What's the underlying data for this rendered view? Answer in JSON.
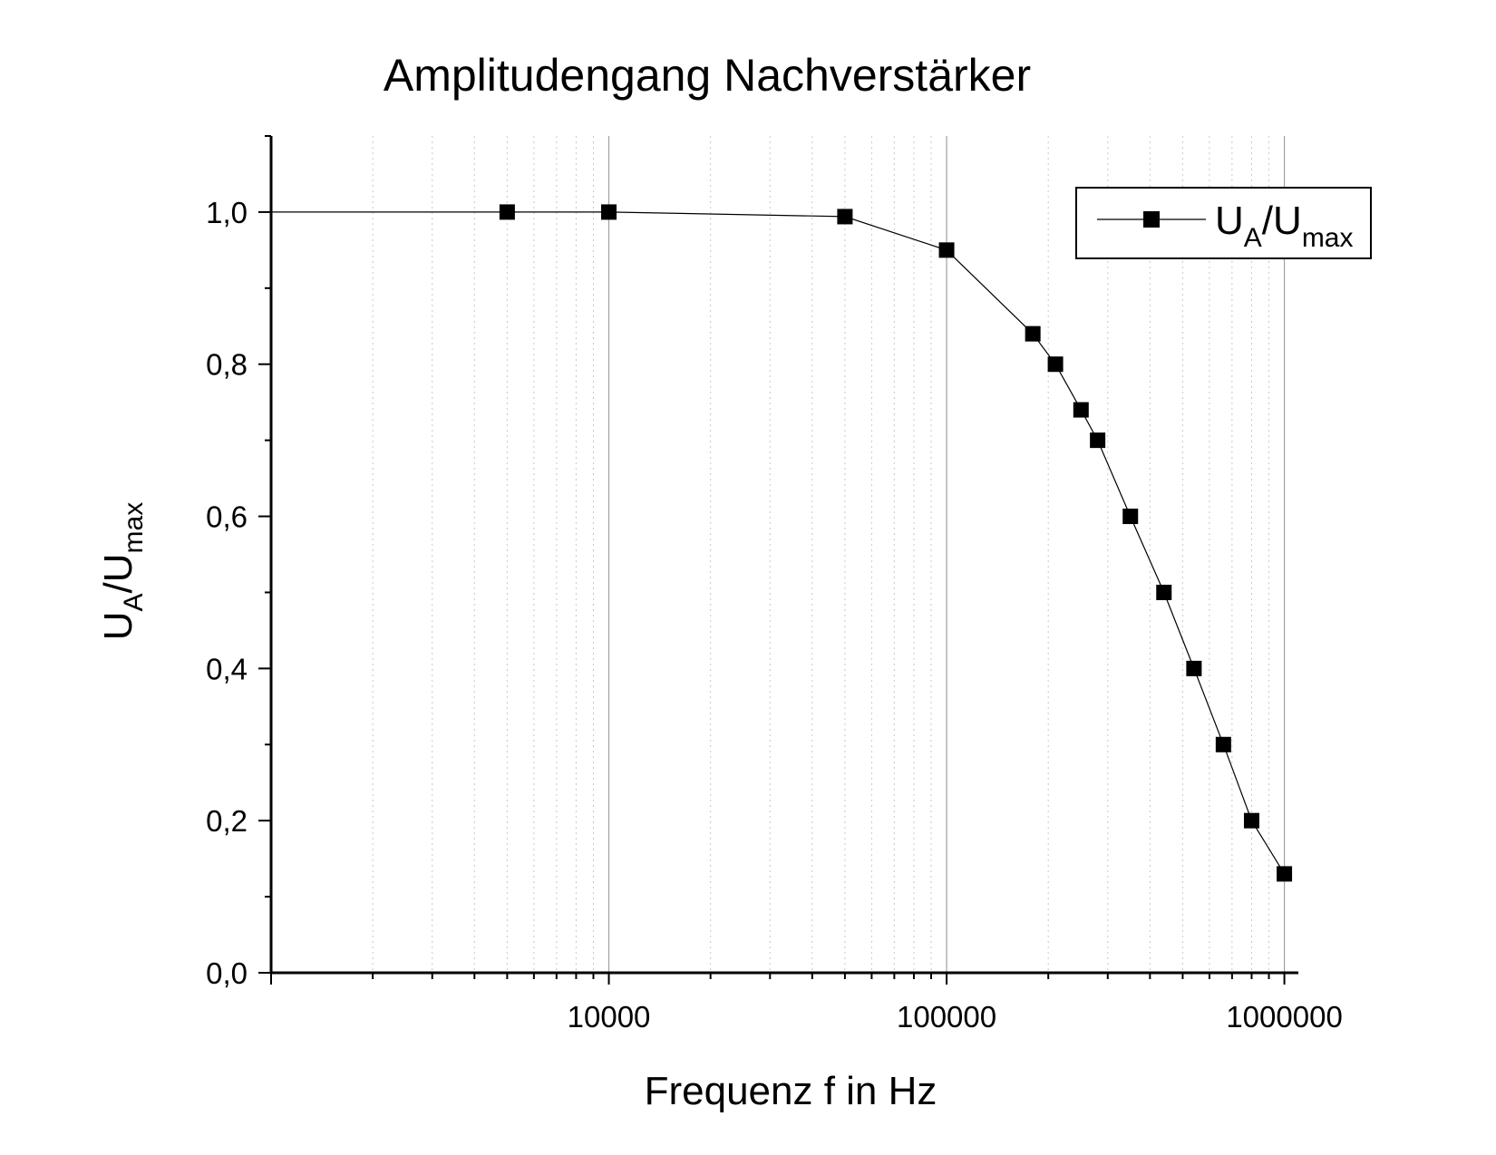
{
  "chart_data": {
    "type": "line",
    "title": "Amplitudengang Nachverstärker",
    "xlabel": "Frequenz f in Hz",
    "ylabel": {
      "base1": "U",
      "sub1": "A",
      "sep": "/",
      "base2": "U",
      "sub2": "max"
    },
    "x_scale": "log",
    "xlim": [
      1000,
      1100000
    ],
    "ylim": [
      0,
      1.1
    ],
    "x_ticks": [
      10000,
      100000,
      1000000
    ],
    "x_tick_labels": [
      "10000",
      "100000",
      "1000000"
    ],
    "y_ticks": [
      0.0,
      0.2,
      0.4,
      0.6,
      0.8,
      1.0
    ],
    "y_tick_labels": [
      "0,0",
      "0,2",
      "0,4",
      "0,6",
      "0,8",
      "1,0"
    ],
    "grid": "vertical major and minor lines on the x axis",
    "legend_position": "top-right",
    "series": [
      {
        "legend": {
          "base1": "U",
          "sub1": "A",
          "sep": "/",
          "base2": "U",
          "sub2": "max"
        },
        "color": "#000000",
        "marker": "square",
        "x": [
          1000,
          5000,
          10000,
          50000,
          100000,
          180000,
          210000,
          250000,
          280000,
          350000,
          440000,
          540000,
          660000,
          800000,
          1000000
        ],
        "y": [
          1.0,
          1.0,
          1.0,
          0.994,
          0.95,
          0.84,
          0.8,
          0.74,
          0.7,
          0.6,
          0.5,
          0.4,
          0.3,
          0.2,
          0.13
        ],
        "marker_visible": [
          false,
          true,
          true,
          true,
          true,
          true,
          true,
          true,
          true,
          true,
          true,
          true,
          true,
          true,
          true
        ]
      }
    ]
  }
}
